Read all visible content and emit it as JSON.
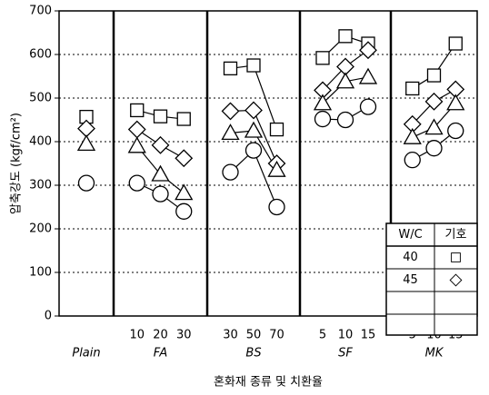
{
  "chart_data": {
    "type": "line",
    "y_label": "압축강도 (kgf/cm²)",
    "x_label": "혼화재 종류 및 치환율",
    "ylim": [
      0,
      700
    ],
    "yticks": [
      0,
      100,
      200,
      300,
      400,
      500,
      600,
      700
    ],
    "grid": true,
    "legend_headers": [
      "W/C",
      "기호"
    ],
    "legend": "lower right",
    "color": "#000000",
    "series": [
      {
        "name": "40",
        "marker": "square"
      },
      {
        "name": "45",
        "marker": "diamond"
      },
      {
        "marker": "triangle"
      },
      {
        "marker": "circle"
      }
    ],
    "groups": [
      {
        "name": "Plain",
        "categories": [
          null
        ],
        "series": [
          {
            "values": [
              457
            ]
          },
          {
            "values": [
              430
            ]
          },
          {
            "values": [
              395
            ]
          },
          {
            "values": [
              305
            ]
          }
        ]
      },
      {
        "name": "FA",
        "categories": [
          10,
          20,
          30
        ],
        "series": [
          {
            "values": [
              472,
              458,
              452
            ]
          },
          {
            "values": [
              428,
              392,
              362
            ]
          },
          {
            "values": [
              390,
              325,
              282
            ]
          },
          {
            "values": [
              305,
              280,
              240
            ]
          }
        ]
      },
      {
        "name": "BS",
        "categories": [
          30,
          50,
          70
        ],
        "series": [
          {
            "values": [
              568,
              575,
              428
            ]
          },
          {
            "values": [
              470,
              472,
              350
            ]
          },
          {
            "values": [
              420,
              425,
              335
            ]
          },
          {
            "values": [
              330,
              380,
              250
            ]
          }
        ]
      },
      {
        "name": "SF",
        "categories": [
          5,
          10,
          15
        ],
        "series": [
          {
            "values": [
              592,
              642,
              625
            ]
          },
          {
            "values": [
              518,
              572,
              610
            ]
          },
          {
            "values": [
              488,
              538,
              548
            ]
          },
          {
            "values": [
              452,
              450,
              480
            ]
          }
        ]
      },
      {
        "name": "MK",
        "categories": [
          5,
          10,
          15
        ],
        "series": [
          {
            "values": [
              522,
              552,
              625
            ]
          },
          {
            "values": [
              440,
              492,
              520
            ]
          },
          {
            "values": [
              410,
              432,
              488
            ]
          },
          {
            "values": [
              358,
              385,
              425
            ]
          }
        ]
      }
    ]
  }
}
